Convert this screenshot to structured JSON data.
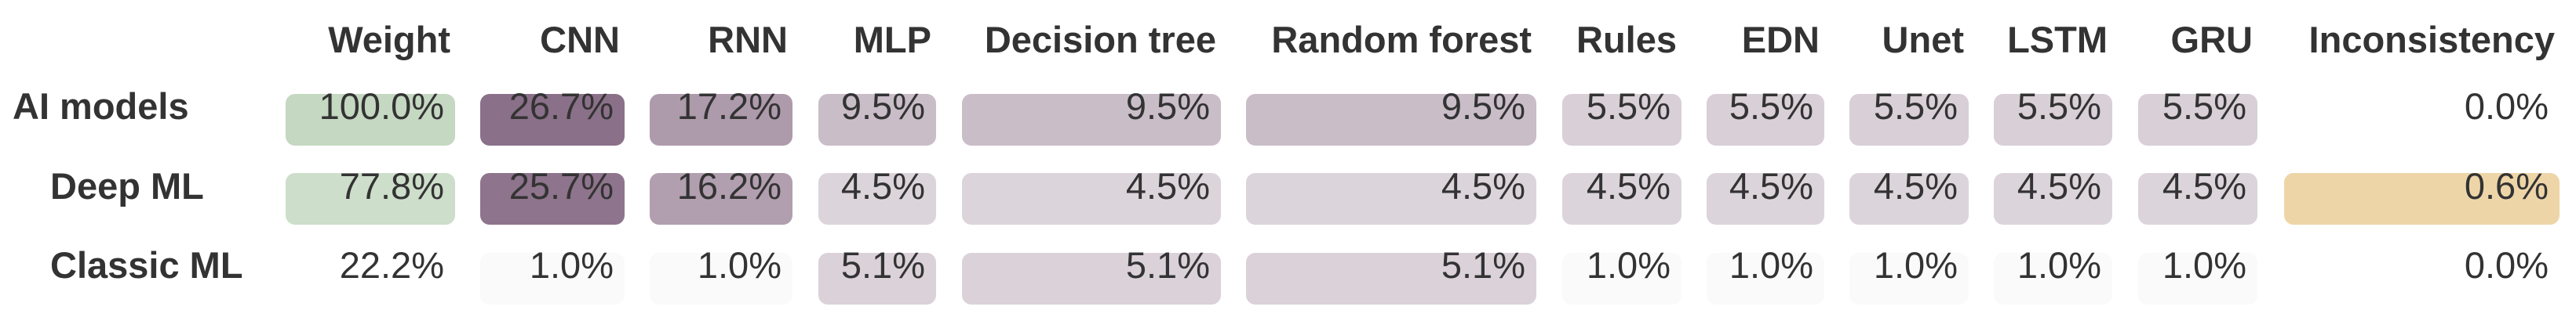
{
  "chart_data": {
    "type": "heatmap",
    "columns": [
      "Weight",
      "CNN",
      "RNN",
      "MLP",
      "Decision tree",
      "Random forest",
      "Rules",
      "EDN",
      "Unet",
      "LSTM",
      "GRU",
      "Inconsistency"
    ],
    "rows": [
      {
        "label": "AI models",
        "values": [
          "100.0%",
          "26.7%",
          "17.2%",
          "9.5%",
          "9.5%",
          "9.5%",
          "5.5%",
          "5.5%",
          "5.5%",
          "5.5%",
          "5.5%",
          "0.0%"
        ]
      },
      {
        "label": "Deep ML",
        "values": [
          "77.8%",
          "25.7%",
          "16.2%",
          "4.5%",
          "4.5%",
          "4.5%",
          "4.5%",
          "4.5%",
          "4.5%",
          "4.5%",
          "4.5%",
          "0.6%"
        ]
      },
      {
        "label": "Classic ML",
        "values": [
          "22.2%",
          "1.0%",
          "1.0%",
          "5.1%",
          "5.1%",
          "5.1%",
          "1.0%",
          "1.0%",
          "1.0%",
          "1.0%",
          "1.0%",
          "0.0%"
        ]
      }
    ],
    "colors": {
      "weight": "#c5d8c2",
      "models": "#8a7088",
      "inconsistency": "#eed5a8",
      "text": "#333333"
    }
  }
}
